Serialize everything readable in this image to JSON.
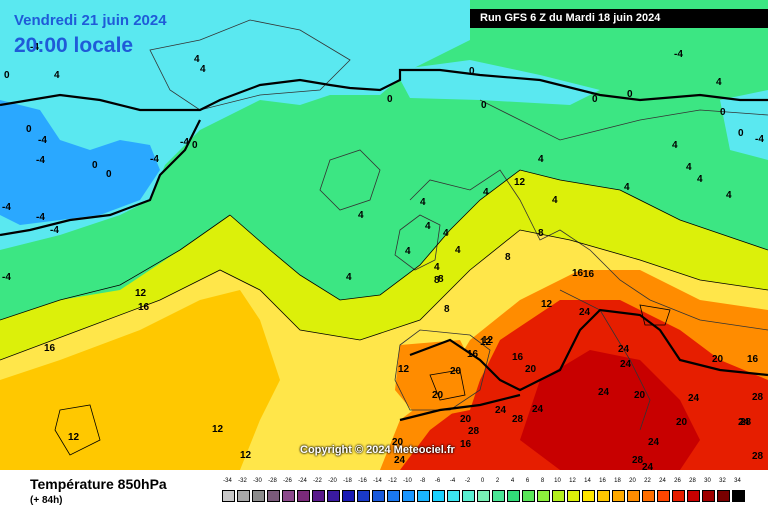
{
  "header": {
    "date_line": "Vendredi 21 juin 2024",
    "time_line": "20:00 locale",
    "run_info": "Run GFS 6 Z du Mardi 18 juin 2024"
  },
  "copyright": "Copyright © 2024 Meteociel.fr",
  "footer": {
    "field_title": "Température 850hPa",
    "lead_time": "(+ 84h)"
  },
  "color_scale": {
    "labels": [
      "-34",
      "-32",
      "-30",
      "-28",
      "-26",
      "-24",
      "-22",
      "-20",
      "-18",
      "-16",
      "-14",
      "-12",
      "-10",
      "-8",
      "-6",
      "-4",
      "-2",
      "0",
      "2",
      "4",
      "6",
      "8",
      "10",
      "12",
      "14",
      "16",
      "18",
      "20",
      "22",
      "24",
      "26",
      "28",
      "30",
      "32",
      "34"
    ],
    "colors": [
      "#c8c8c8",
      "#a6a6a6",
      "#8c8c8c",
      "#7a5a7a",
      "#8c4a8c",
      "#7a2a7a",
      "#5a1a8c",
      "#3a1aa0",
      "#1a1ab4",
      "#1a3ac8",
      "#1a5adc",
      "#1a78f0",
      "#1a96ff",
      "#1ab4ff",
      "#1ad2ff",
      "#3ce6f0",
      "#5af0d2",
      "#78f0b4",
      "#4ae696",
      "#32dc78",
      "#5ae65a",
      "#8cf03c",
      "#b4f01e",
      "#dcf00a",
      "#ffe600",
      "#ffc800",
      "#ffaa00",
      "#ff8c00",
      "#ff6e00",
      "#ff4600",
      "#e61e00",
      "#c80000",
      "#a00000",
      "#780000",
      "#000000"
    ]
  },
  "isotherm_labels": [
    "4",
    "4",
    "0",
    "4",
    "0",
    "-4",
    "0",
    "-4",
    "-4",
    "-4",
    "0",
    "-4",
    "0",
    "-4",
    "-4",
    "-4",
    "-4",
    "0",
    "0",
    "0",
    "0",
    "0",
    "-4",
    "4",
    "0",
    "4",
    "-4",
    "4",
    "0",
    "4",
    "4",
    "4",
    "4",
    "4",
    "4",
    "4",
    "4",
    "4",
    "4",
    "12",
    "4",
    "4",
    "4",
    "4",
    "8",
    "8",
    "8",
    "8",
    "8",
    "12",
    "12",
    "16",
    "16",
    "12",
    "12",
    "16",
    "16",
    "16",
    "16",
    "24",
    "24",
    "24",
    "12",
    "16",
    "16",
    "20",
    "20",
    "20",
    "20",
    "20",
    "12",
    "12",
    "12",
    "24",
    "24",
    "24",
    "24",
    "24",
    "28",
    "28",
    "20",
    "20",
    "20",
    "24",
    "28",
    "28",
    "28",
    "24",
    "24",
    "28",
    "24",
    "24",
    "24",
    "28",
    "28",
    "24",
    "24",
    "24"
  ]
}
